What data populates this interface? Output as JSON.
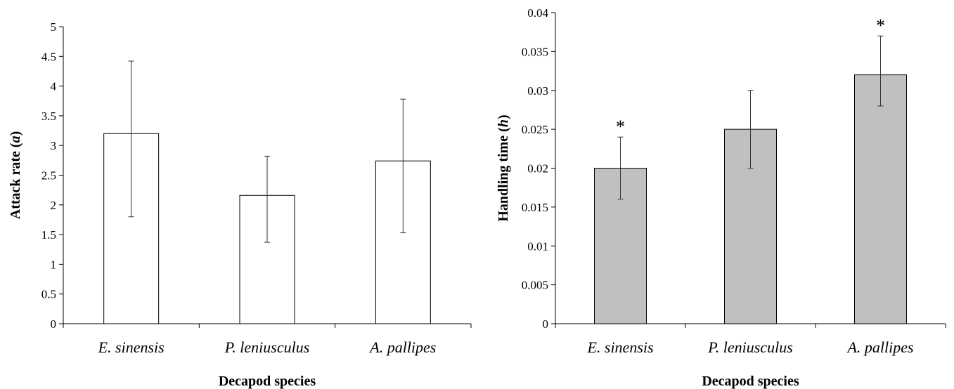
{
  "chart_data": [
    {
      "type": "bar",
      "categories": [
        "E. sinensis",
        "P. leniusculus",
        "A. pallipes"
      ],
      "values": [
        3.2,
        2.16,
        2.74
      ],
      "error_low": [
        1.8,
        1.37,
        1.53
      ],
      "error_high": [
        4.42,
        2.82,
        3.78
      ],
      "annotations": [
        "",
        "",
        ""
      ],
      "xlabel": "Decapod species",
      "ylabel": "Attack rate (a)",
      "ylabel_main": "Attack rate (",
      "ylabel_var": "a",
      "ylabel_end": ")",
      "ylim": [
        0,
        5
      ],
      "yticks": [
        0,
        0.5,
        1,
        1.5,
        2,
        2.5,
        3,
        3.5,
        4,
        4.5,
        5
      ],
      "ytick_labels": [
        "0",
        "0.5",
        "1",
        "1.5",
        "2",
        "2.5",
        "3",
        "3.5",
        "4",
        "4.5",
        "5"
      ],
      "bar_color": "#ffffff",
      "grid": false
    },
    {
      "type": "bar",
      "categories": [
        "E. sinensis",
        "P. leniusculus",
        "A. pallipes"
      ],
      "values": [
        0.02,
        0.025,
        0.032
      ],
      "error_low": [
        0.016,
        0.02,
        0.028
      ],
      "error_high": [
        0.024,
        0.03,
        0.037
      ],
      "annotations": [
        "*",
        "",
        "*"
      ],
      "xlabel": "Decapod species",
      "ylabel": "Handling time (h)",
      "ylabel_main": "Handling time (",
      "ylabel_var": "h",
      "ylabel_end": ")",
      "ylim": [
        0,
        0.04
      ],
      "yticks": [
        0,
        0.005,
        0.01,
        0.015,
        0.02,
        0.025,
        0.03,
        0.035,
        0.04
      ],
      "ytick_labels": [
        "0",
        "0.005",
        "0.01",
        "0.015",
        "0.02",
        "0.025",
        "0.03",
        "0.035",
        "0.04"
      ],
      "bar_color": "#c0c0c0",
      "grid": false
    }
  ]
}
